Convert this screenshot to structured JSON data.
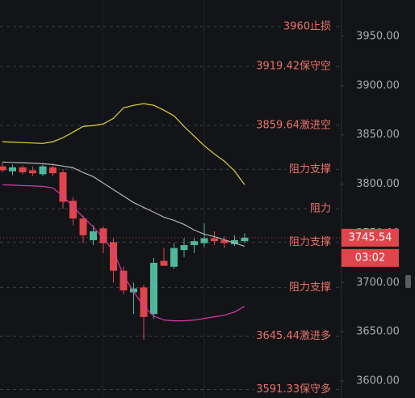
{
  "chart_data": {
    "type": "candlestick",
    "ylim": [
      3582.7,
      3987
    ],
    "yticks": [
      {
        "value": 3600,
        "label": "3600.00"
      },
      {
        "value": 3650,
        "label": "3650.00"
      },
      {
        "value": 3700,
        "label": "3700.00"
      },
      {
        "value": 3750,
        "label": "3750.00"
      },
      {
        "value": 3800,
        "label": "3800.00"
      },
      {
        "value": 3850,
        "label": "3850.00"
      },
      {
        "value": 3900,
        "label": "3900.00"
      },
      {
        "value": 3950,
        "label": "3950.00"
      }
    ],
    "up_color": "#4fb89c",
    "down_color": "#e0454b",
    "open": [
      3818,
      3813,
      3817,
      3814,
      3810,
      3817,
      3812,
      3783,
      3765,
      3743,
      3755,
      3741,
      3712,
      3690,
      3695,
      3668,
      3722,
      3716,
      3733,
      3738,
      3740,
      3745,
      3743,
      3739,
      3742
    ],
    "high": [
      3822,
      3820,
      3819,
      3818,
      3820,
      3819,
      3815,
      3787,
      3768,
      3758,
      3757,
      3745,
      3716,
      3700,
      3698,
      3725,
      3735,
      3740,
      3745,
      3745,
      3760,
      3752,
      3747,
      3748,
      3750
    ],
    "low": [
      3812,
      3809,
      3810,
      3808,
      3808,
      3808,
      3775,
      3758,
      3740,
      3738,
      3730,
      3700,
      3688,
      3668,
      3642,
      3663,
      3717,
      3714,
      3726,
      3730,
      3736,
      3738,
      3735,
      3737,
      3740
    ],
    "close": [
      3814,
      3817,
      3812,
      3811,
      3818,
      3811,
      3782,
      3765,
      3748,
      3752,
      3740,
      3712,
      3692,
      3694,
      3665,
      3720,
      3717,
      3735,
      3738,
      3742,
      3745,
      3742,
      3740,
      3743,
      3745.54
    ],
    "lines": [
      {
        "color": "#e3d23c",
        "values": [
          3843.0,
          3842.6,
          3842.1,
          3841.7,
          3841.3,
          3843.0,
          3847.1,
          3852.8,
          3858.6,
          3859.4,
          3861.1,
          3866.8,
          3877.5,
          3880.0,
          3881.7,
          3880.0,
          3875.1,
          3869.3,
          3858.6,
          3848.7,
          3838.9,
          3830.6,
          3823.2,
          3813.3,
          3799.3
        ]
      },
      {
        "color": "#b4b4b4",
        "values": [
          3822.4,
          3822.0,
          3821.6,
          3821.2,
          3820.7,
          3819.9,
          3818.3,
          3816.6,
          3811.7,
          3807.6,
          3801.0,
          3794.4,
          3787.8,
          3781.2,
          3776.3,
          3771.4,
          3766.4,
          3763.1,
          3759.0,
          3753.3,
          3749.1,
          3746.7,
          3743.4,
          3740.1,
          3736.8
        ]
      },
      {
        "color": "#d83aa8",
        "values": [
          3799.3,
          3798.9,
          3798.5,
          3798.1,
          3797.7,
          3796.1,
          3787.8,
          3777.1,
          3766.4,
          3756.5,
          3745.0,
          3731.9,
          3707.2,
          3690.7,
          3675.9,
          3666.0,
          3661.9,
          3661.1,
          3661.1,
          3661.9,
          3663.5,
          3665.2,
          3666.8,
          3670.1,
          3675.9
        ]
      }
    ],
    "level_color": "#e8736a",
    "levels": [
      {
        "label": "3960止损",
        "value": 3960
      },
      {
        "label": "3919.42保守空",
        "value": 3919.42
      },
      {
        "label": "3859.64激进空",
        "value": 3859.64
      },
      {
        "label": "阻力支撑",
        "value": 3815
      },
      {
        "label": "阻力",
        "value": 3775
      },
      {
        "label": "阻力支撑",
        "value": 3741
      },
      {
        "label": "阻力支撑",
        "value": 3695
      },
      {
        "label": "3645.44激进多",
        "value": 3645.44
      },
      {
        "label": "3591.33保守多",
        "value": 3591.33
      }
    ],
    "last_price": 3745.54,
    "countdown": "03:02"
  }
}
